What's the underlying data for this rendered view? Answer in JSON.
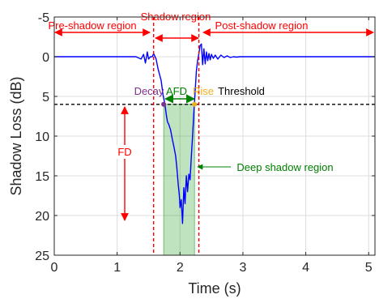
{
  "chart_data": {
    "type": "line",
    "xlabel": "Time (s)",
    "ylabel": "Shadow Loss (dB)",
    "xlim": [
      0,
      5.1
    ],
    "ylim": [
      -5,
      25
    ],
    "y_reversed": true,
    "grid": true,
    "xticks": [
      "0",
      "1",
      "2",
      "3",
      "4",
      "5"
    ],
    "yticks": [
      "-5",
      "0",
      "5",
      "10",
      "15",
      "20",
      "25"
    ],
    "xtick_values": [
      0,
      1,
      2,
      3,
      4,
      5
    ],
    "ytick_values": [
      -5,
      0,
      5,
      10,
      15,
      20,
      25
    ],
    "series": [
      {
        "color": "#0000ff",
        "x": [
          0,
          1.3,
          1.38,
          1.42,
          1.45,
          1.48,
          1.5,
          1.53,
          1.56,
          1.58,
          1.62,
          1.65,
          1.7,
          1.73,
          1.76,
          1.78,
          1.8,
          1.82,
          1.85,
          1.88,
          1.9,
          1.93,
          1.95,
          1.97,
          1.99,
          2.0,
          2.02,
          2.04,
          2.06,
          2.08,
          2.1,
          2.12,
          2.14,
          2.16,
          2.18,
          2.2,
          2.22,
          2.24,
          2.26,
          2.28,
          2.3,
          2.32,
          2.34,
          2.36,
          2.38,
          2.4,
          2.42,
          2.44,
          2.46,
          2.48,
          2.5,
          2.53,
          2.56,
          2.6,
          2.65,
          2.7,
          2.75,
          2.8,
          2.85,
          2.9,
          2.95,
          3.0,
          3.2,
          5.1
        ],
        "y": [
          0,
          0,
          0.3,
          -0.3,
          0.8,
          -0.6,
          0.3,
          0,
          0,
          -0.4,
          0.3,
          1.5,
          3.0,
          4.8,
          6.0,
          7.2,
          8.2,
          8.5,
          9.2,
          10.5,
          11.2,
          12.5,
          14.0,
          16.0,
          17.5,
          19.0,
          18.0,
          21.0,
          16.5,
          18.5,
          15.0,
          17.0,
          14.8,
          15.5,
          12.5,
          10.0,
          7.0,
          4.5,
          1.8,
          0.5,
          -0.4,
          -1.4,
          -1.6,
          1.0,
          -1.0,
          0.9,
          -0.6,
          0.5,
          -0.4,
          0.4,
          -0.3,
          0.2,
          -0.2,
          0.3,
          -0.2,
          0.1,
          -0.1,
          0.1,
          0,
          0.05,
          0,
          0,
          0,
          0
        ]
      }
    ],
    "threshold": {
      "y": 6,
      "label": "Threshold"
    },
    "vlines": [
      1.58,
      2.3
    ],
    "deep_shadow_region": {
      "x0": 1.74,
      "x1": 2.23,
      "label": "Deep shadow region"
    },
    "points": [
      {
        "x": 1.74,
        "y": 6,
        "label": "Decay",
        "color": "#7e2f8e"
      },
      {
        "x": 2.23,
        "y": 6,
        "label": "Rise",
        "color": "#edb120"
      }
    ],
    "annotations": {
      "pre_shadow": "Pre-shadow region",
      "shadow": "Shadow region",
      "post_shadow": "Post-shadow region",
      "afd": "AFD",
      "fd": "FD"
    }
  }
}
